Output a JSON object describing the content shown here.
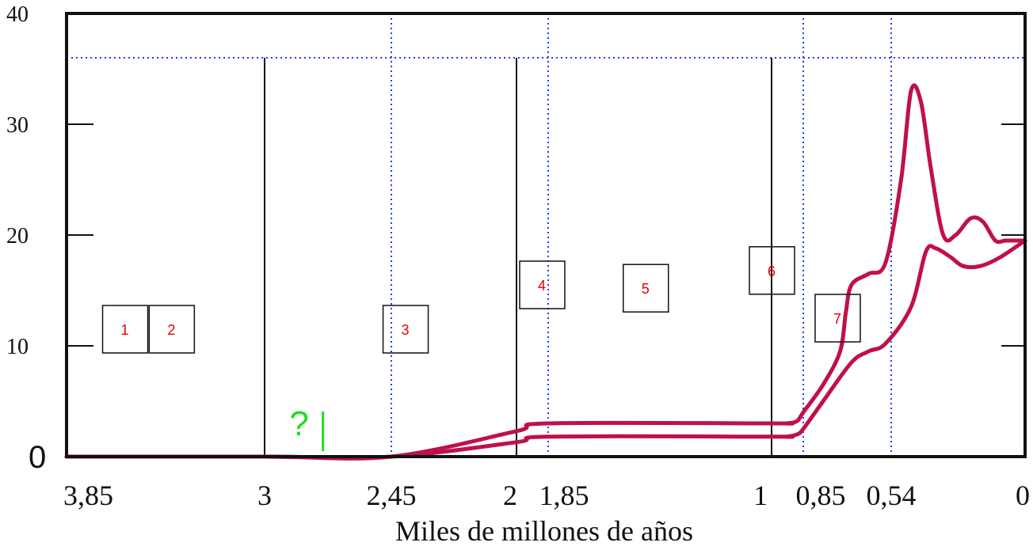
{
  "chart_data": {
    "type": "line",
    "xlabel": "Miles de millones de años",
    "ylabel": "",
    "xlim": [
      3.85,
      0
    ],
    "ylim": [
      0,
      40
    ],
    "x_ticks": [
      {
        "value": 3.85,
        "label": "3,85"
      },
      {
        "value": 3,
        "label": "3"
      },
      {
        "value": 2.45,
        "label": "2,45"
      },
      {
        "value": 2,
        "label": "2"
      },
      {
        "value": 1.85,
        "label": "1,85"
      },
      {
        "value": 1,
        "label": "1"
      },
      {
        "value": 0.85,
        "label": "0,85"
      },
      {
        "value": 0.54,
        "label": "0,54"
      },
      {
        "value": 0,
        "label": "0"
      }
    ],
    "y_ticks": [
      {
        "value": 0,
        "label": "0"
      },
      {
        "value": 10,
        "label": "10"
      },
      {
        "value": 20,
        "label": "20"
      },
      {
        "value": 30,
        "label": "30"
      },
      {
        "value": 40,
        "label": "40"
      }
    ],
    "series": [
      {
        "color": "#c0104a",
        "x": [
          3.85,
          3.0,
          2.45,
          2.0,
          1.85,
          1.0,
          0.93,
          0.88,
          0.85,
          0.78,
          0.72,
          0.7,
          0.68,
          0.62,
          0.56,
          0.5,
          0.46,
          0.42,
          0.38,
          0.33,
          0.28,
          0.22,
          0.17,
          0.12,
          0.08,
          0.04,
          0.0
        ],
        "y": [
          0,
          0,
          0,
          2.3,
          3.0,
          3.0,
          3.0,
          3.2,
          4.0,
          6.5,
          9.5,
          13.0,
          15.5,
          16.5,
          17.5,
          25.0,
          33.0,
          32.0,
          26.0,
          20.0,
          20.0,
          21.5,
          21.2,
          19.5,
          19.5,
          19.5,
          19.5
        ]
      },
      {
        "color": "#c0104a",
        "x": [
          3.85,
          3.0,
          2.45,
          2.0,
          1.85,
          1.0,
          0.93,
          0.88,
          0.85,
          0.78,
          0.68,
          0.62,
          0.56,
          0.46,
          0.4,
          0.36,
          0.3,
          0.25,
          0.18,
          0.1,
          0.0
        ],
        "y": [
          0,
          0,
          0,
          1.3,
          1.8,
          1.8,
          1.8,
          2.0,
          2.5,
          5.0,
          8.5,
          9.5,
          10.2,
          13.5,
          18.5,
          18.8,
          18.0,
          17.2,
          17.2,
          18.0,
          19.5
        ]
      }
    ],
    "boundary_lines": [
      {
        "x": 3.0,
        "style": "solid"
      },
      {
        "x": 2.45,
        "style": "dotted"
      },
      {
        "x": 2.0,
        "style": "solid"
      },
      {
        "x": 1.85,
        "style": "dotted"
      },
      {
        "x": 1.0,
        "style": "solid"
      },
      {
        "x": 0.85,
        "style": "dotted"
      },
      {
        "x": 0.54,
        "style": "dotted"
      }
    ],
    "reference_line_y": 36,
    "stage_boxes": [
      {
        "label": "1",
        "x": 3.6,
        "y": 11.5
      },
      {
        "label": "2",
        "x": 3.4,
        "y": 11.5
      },
      {
        "label": "3",
        "x": 2.4,
        "y": 11.5
      },
      {
        "label": "4",
        "x": 1.88,
        "y": 15.5
      },
      {
        "label": "5",
        "x": 1.48,
        "y": 15.2
      },
      {
        "label": "6",
        "x": 1.0,
        "y": 16.8
      },
      {
        "label": "7",
        "x": 0.73,
        "y": 12.5
      }
    ],
    "annotations": [
      {
        "text": "?",
        "color": "#22dd22",
        "x": 2.85,
        "y": 1.5
      }
    ],
    "grid": false,
    "legend": "none"
  }
}
